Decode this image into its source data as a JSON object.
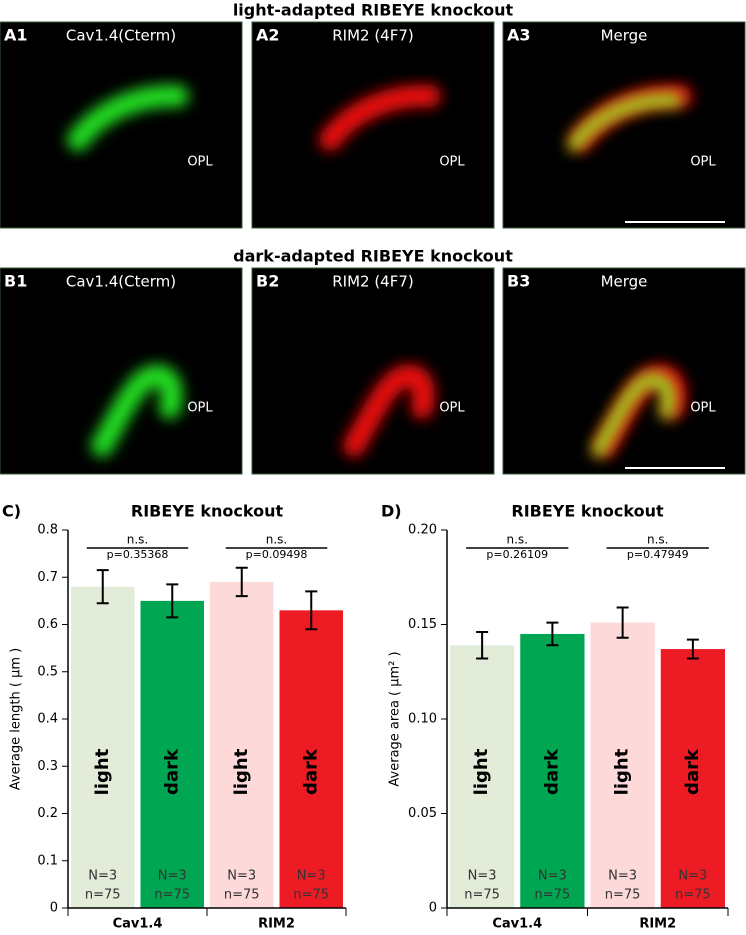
{
  "panels": [
    {
      "title": "light-adapted RIBEYE knockout",
      "items": [
        {
          "label": "A1",
          "stain": "Cav1.4(Cterm)",
          "region": "OPL"
        },
        {
          "label": "A2",
          "stain": "RIM2 (4F7)",
          "region": "OPL"
        },
        {
          "label": "A3",
          "stain": "Merge",
          "region": "OPL"
        }
      ]
    },
    {
      "title": "dark-adapted RIBEYE knockout",
      "items": [
        {
          "label": "B1",
          "stain": "Cav1.4(Cterm)",
          "region": "OPL"
        },
        {
          "label": "B2",
          "stain": "RIM2 (4F7)",
          "region": "OPL"
        },
        {
          "label": "B3",
          "stain": "Merge",
          "region": "OPL"
        }
      ]
    }
  ],
  "chart_data": [
    {
      "type": "bar",
      "panel": "C)",
      "title": "RIBEYE knockout",
      "ylabel": "Average length ( µm )",
      "categories": [
        "light",
        "dark",
        "light",
        "dark"
      ],
      "groups": [
        "Cav1.4",
        "RIM2"
      ],
      "values": [
        0.68,
        0.65,
        0.69,
        0.63
      ],
      "errors": [
        0.035,
        0.035,
        0.03,
        0.04
      ],
      "colors": [
        "#e2ecd9",
        "#00a651",
        "#fdd9d9",
        "#ed1c24"
      ],
      "N_labels": [
        "N=3",
        "N=3",
        "N=3",
        "N=3"
      ],
      "n_labels": [
        "n=75",
        "n=75",
        "n=75",
        "n=75"
      ],
      "annotations": [
        {
          "text": "n.s.",
          "p": "p=0.35368"
        },
        {
          "text": "n.s.",
          "p": "p=0.09498"
        }
      ],
      "ylim": [
        0,
        0.8
      ],
      "yticks": [
        0,
        0.1,
        0.2,
        0.3,
        0.4,
        0.5,
        0.6,
        0.7,
        0.8
      ]
    },
    {
      "type": "bar",
      "panel": "D)",
      "title": "RIBEYE knockout",
      "ylabel": "Average area ( µm² )",
      "categories": [
        "light",
        "dark",
        "light",
        "dark"
      ],
      "groups": [
        "Cav1.4",
        "RIM2"
      ],
      "values": [
        0.139,
        0.145,
        0.151,
        0.137
      ],
      "errors": [
        0.007,
        0.006,
        0.008,
        0.005
      ],
      "colors": [
        "#e2ecd9",
        "#00a651",
        "#fdd9d9",
        "#ed1c24"
      ],
      "N_labels": [
        "N=3",
        "N=3",
        "N=3",
        "N=3"
      ],
      "n_labels": [
        "n=75",
        "n=75",
        "n=75",
        "n=75"
      ],
      "annotations": [
        {
          "text": "n.s.",
          "p": "p=0.26109"
        },
        {
          "text": "n.s.",
          "p": "p=0.47949"
        }
      ],
      "ylim": [
        0,
        0.2
      ],
      "yticks": [
        0,
        {
          "value": 0.05,
          "label": "0.05"
        },
        {
          "value": 0.1,
          "label": "0.10"
        },
        {
          "value": 0.15,
          "label": "0.15"
        },
        {
          "value": 0.2,
          "label": "0.20"
        }
      ]
    }
  ]
}
